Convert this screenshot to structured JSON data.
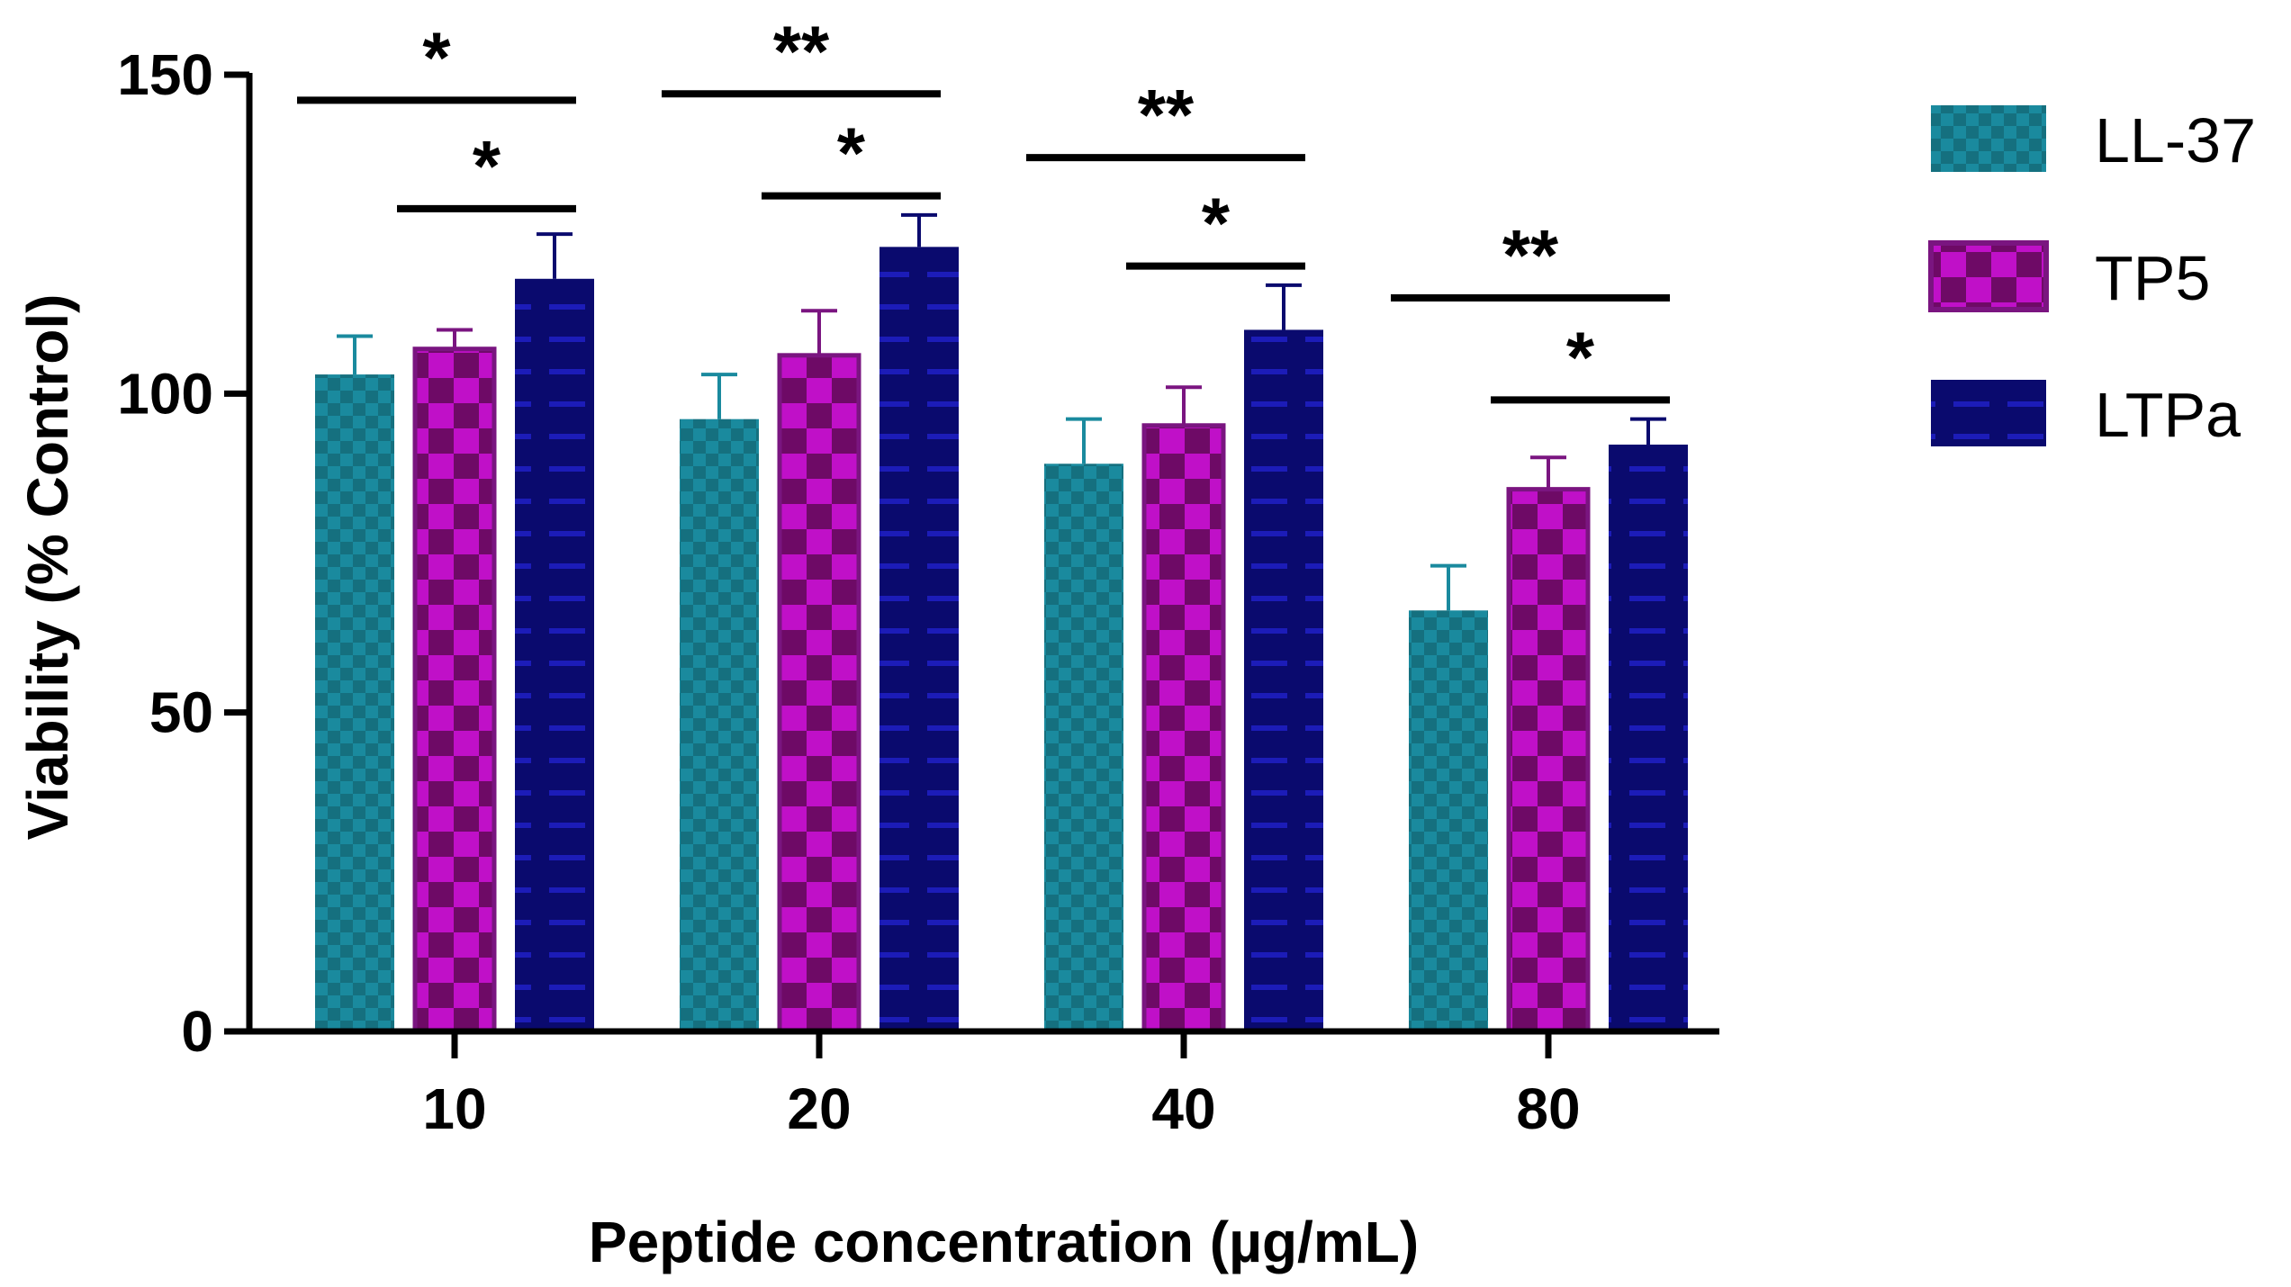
{
  "chart_data": {
    "type": "bar",
    "title": "",
    "xlabel": "Peptide concentration (µg/mL)",
    "ylabel": "Viability (% Control)",
    "ylim": [
      0,
      150
    ],
    "yticks": [
      "0",
      "50",
      "100",
      "150"
    ],
    "categories": [
      "10",
      "20",
      "40",
      "80"
    ],
    "series": [
      {
        "name": "LL-37",
        "values": [
          103,
          96,
          89,
          66
        ],
        "errors": [
          6,
          7,
          7,
          7
        ],
        "color": "#1a8a9e",
        "dark": "#15707f",
        "pattern": "checker-small"
      },
      {
        "name": "TP5",
        "values": [
          107,
          106,
          95,
          85
        ],
        "errors": [
          3,
          7,
          6,
          5
        ],
        "color": "#c010c8",
        "dark": "#6e0a66",
        "edge": "#7a1580",
        "pattern": "checker-large"
      },
      {
        "name": "LTPa",
        "values": [
          118,
          123,
          110,
          92
        ],
        "errors": [
          7,
          5,
          7,
          4
        ],
        "color": "#0a0a6e",
        "dark": "#1c1cb8",
        "pattern": "dashes"
      }
    ],
    "significance": [
      {
        "category": 0,
        "from": 0,
        "to": 2,
        "label": "*",
        "level": 146
      },
      {
        "category": 0,
        "from": 1,
        "to": 2,
        "label": "*",
        "level": 129
      },
      {
        "category": 1,
        "from": 0,
        "to": 2,
        "label": "**",
        "level": 147
      },
      {
        "category": 1,
        "from": 1,
        "to": 2,
        "label": "*",
        "level": 131
      },
      {
        "category": 2,
        "from": 0,
        "to": 2,
        "label": "**",
        "level": 137
      },
      {
        "category": 2,
        "from": 1,
        "to": 2,
        "label": "*",
        "level": 120
      },
      {
        "category": 3,
        "from": 0,
        "to": 2,
        "label": "**",
        "level": 115
      },
      {
        "category": 3,
        "from": 1,
        "to": 2,
        "label": "*",
        "level": 99
      }
    ],
    "legend": {
      "position": "top-right"
    }
  }
}
